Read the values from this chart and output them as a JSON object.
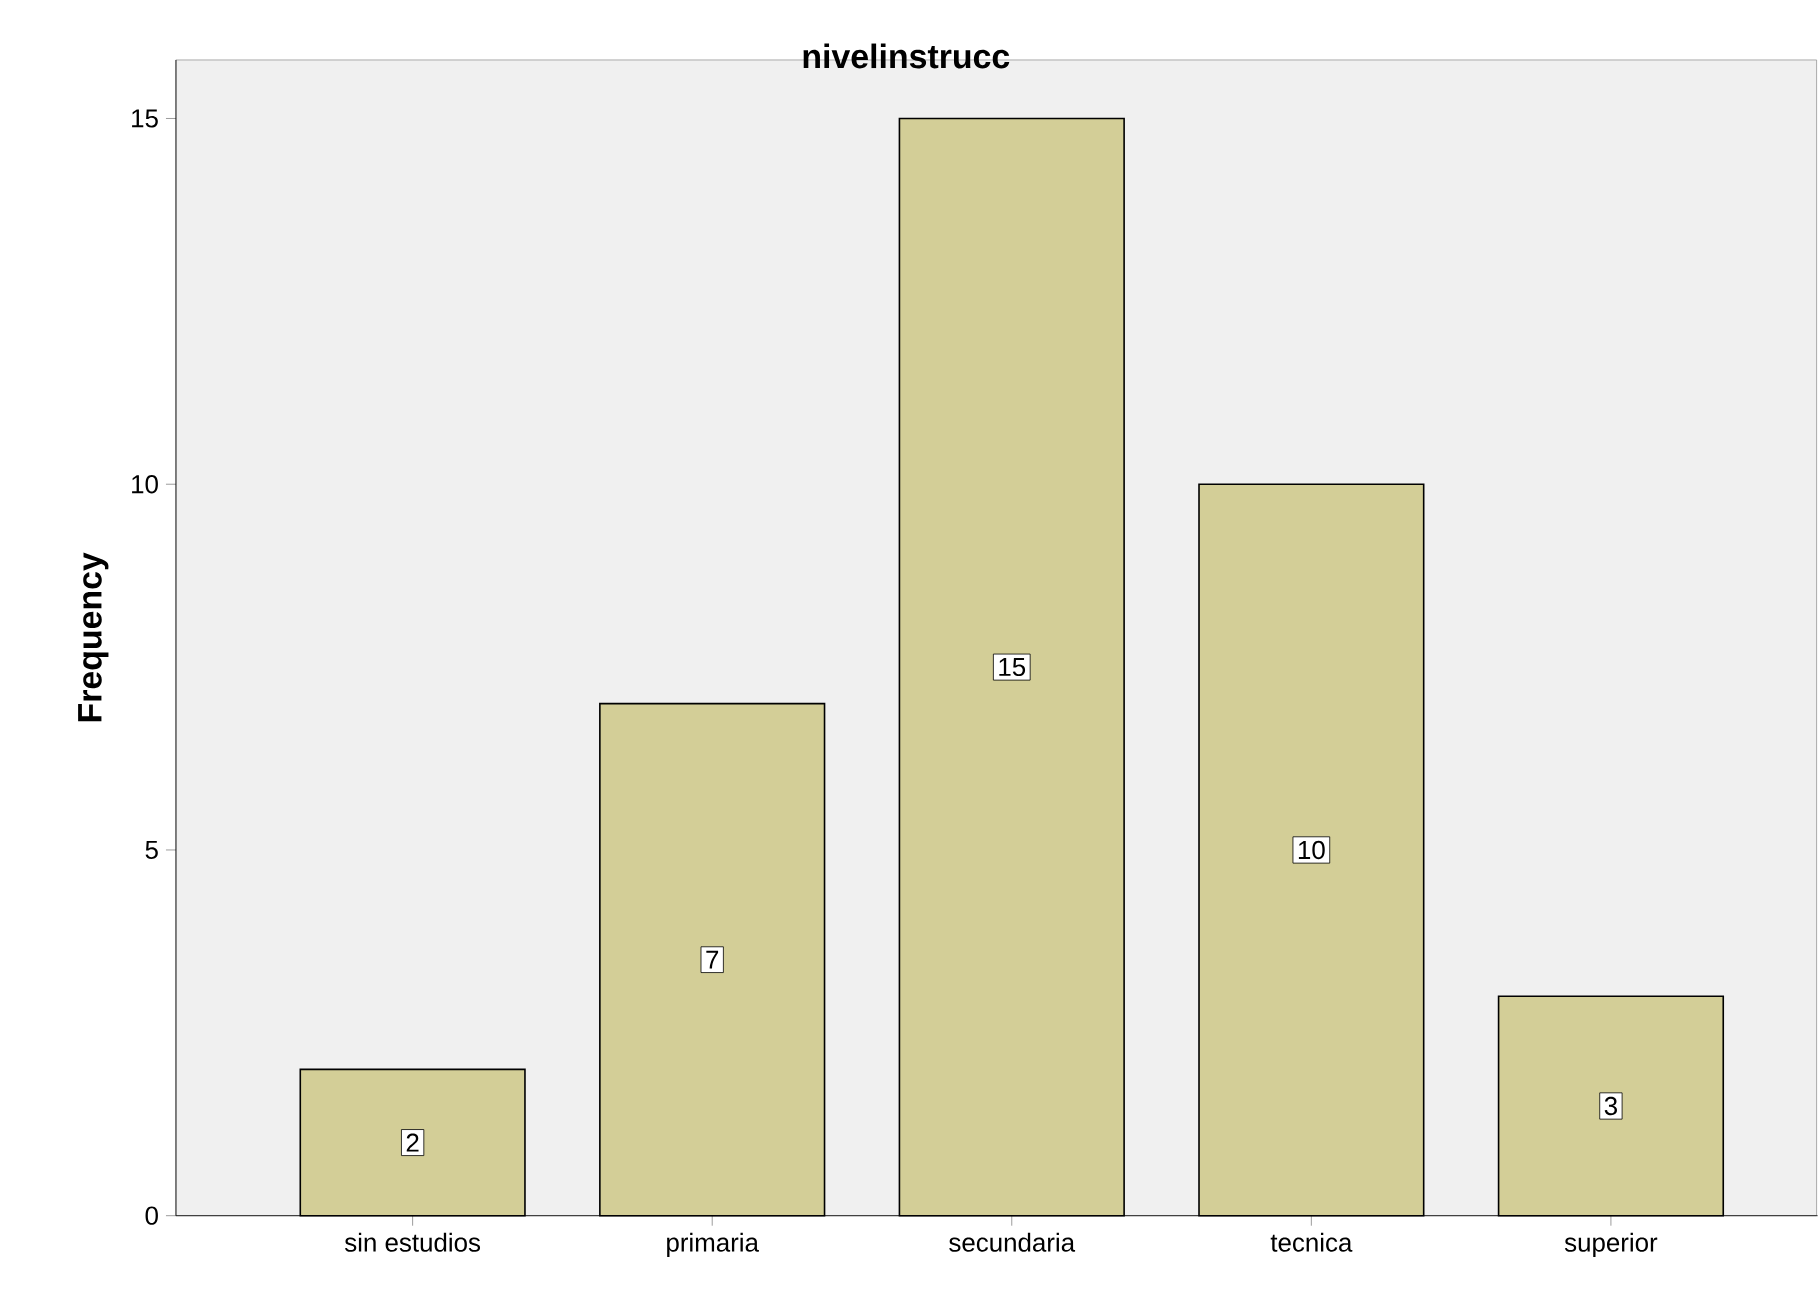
{
  "chart_data": {
    "type": "bar",
    "title": "nivelinstrucc",
    "ylabel": "Frequency",
    "categories": [
      "sin estudios",
      "primaria",
      "secundaria",
      "tecnica",
      "superior"
    ],
    "values": [
      2,
      7,
      15,
      10,
      3
    ],
    "color": "#d3ce97",
    "ylim": [
      0,
      15.8
    ],
    "yticks": [
      0,
      5,
      10,
      15
    ],
    "data_labels": true,
    "grid": false
  }
}
